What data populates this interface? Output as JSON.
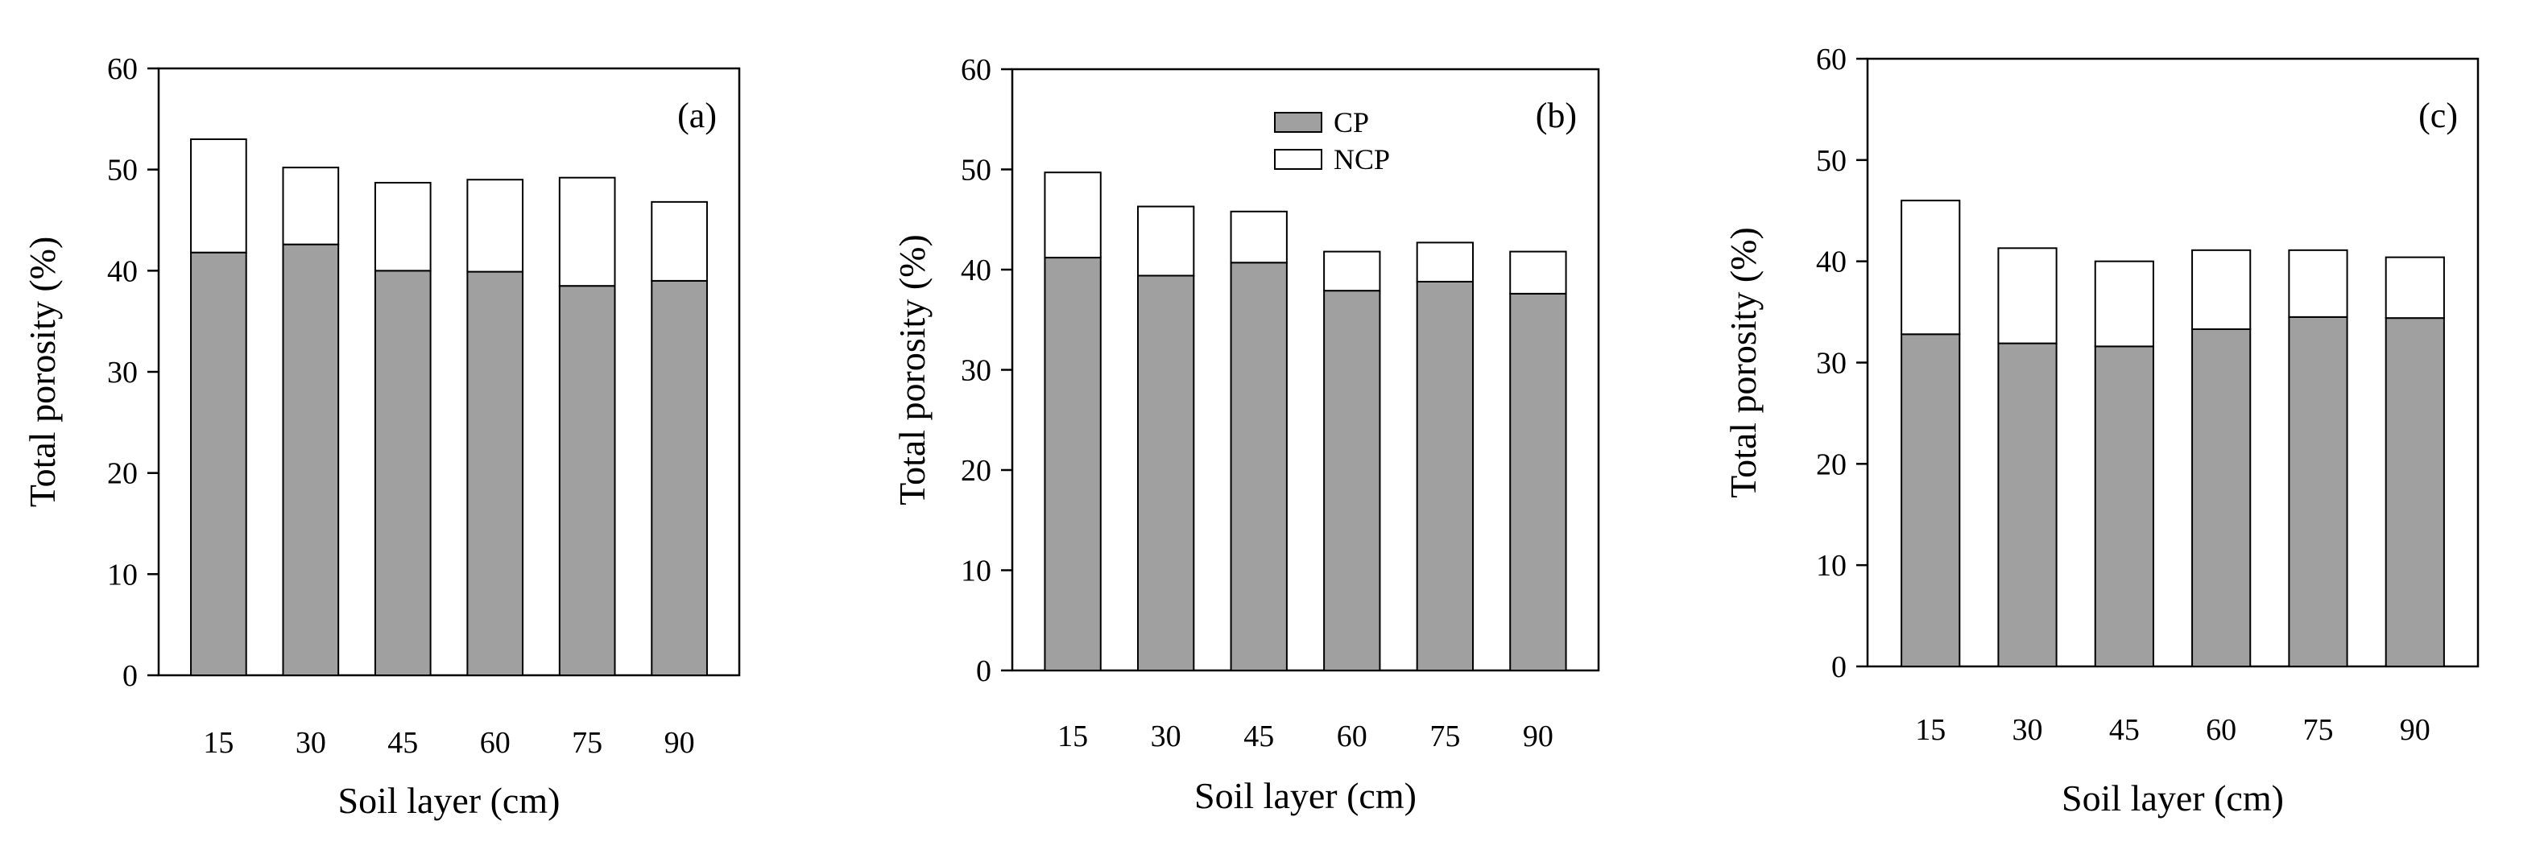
{
  "colors": {
    "cp_fill": "#a0a0a0",
    "ncp_fill": "#ffffff",
    "stroke": "#000000"
  },
  "legend": {
    "cp": "CP",
    "ncp": "NCP",
    "placement": "top-center of panel (b)"
  },
  "chart_data": [
    {
      "type": "bar",
      "stacked": true,
      "panel_label": "(a)",
      "xlabel": "Soil layer (cm)",
      "ylabel": "Total porosity (%)",
      "ylim": [
        0,
        60
      ],
      "yticks": [
        0,
        10,
        20,
        30,
        40,
        50,
        60
      ],
      "categories": [
        "15",
        "30",
        "45",
        "60",
        "75",
        "90"
      ],
      "series": [
        {
          "name": "CP",
          "values": [
            41.8,
            42.6,
            40.0,
            39.9,
            38.5,
            39.0
          ]
        },
        {
          "name": "NCP",
          "values": [
            11.2,
            7.6,
            8.7,
            9.1,
            10.7,
            7.8
          ]
        }
      ]
    },
    {
      "type": "bar",
      "stacked": true,
      "panel_label": "(b)",
      "xlabel": "Soil layer (cm)",
      "ylabel": "Total porosity (%)",
      "ylim": [
        0,
        60
      ],
      "yticks": [
        0,
        10,
        20,
        30,
        40,
        50,
        60
      ],
      "categories": [
        "15",
        "30",
        "45",
        "60",
        "75",
        "90"
      ],
      "series": [
        {
          "name": "CP",
          "values": [
            41.2,
            39.4,
            40.7,
            37.9,
            38.8,
            37.6
          ]
        },
        {
          "name": "NCP",
          "values": [
            8.5,
            6.9,
            5.1,
            3.9,
            3.9,
            4.2
          ]
        }
      ]
    },
    {
      "type": "bar",
      "stacked": true,
      "panel_label": "(c)",
      "xlabel": "Soil layer (cm)",
      "ylabel": "Total porosity (%)",
      "ylim": [
        0,
        60
      ],
      "yticks": [
        0,
        10,
        20,
        30,
        40,
        50,
        60
      ],
      "categories": [
        "15",
        "30",
        "45",
        "60",
        "75",
        "90"
      ],
      "series": [
        {
          "name": "CP",
          "values": [
            32.8,
            31.9,
            31.6,
            33.3,
            34.5,
            34.4
          ]
        },
        {
          "name": "NCP",
          "values": [
            13.2,
            9.4,
            8.4,
            7.8,
            6.6,
            6.0
          ]
        }
      ]
    }
  ]
}
